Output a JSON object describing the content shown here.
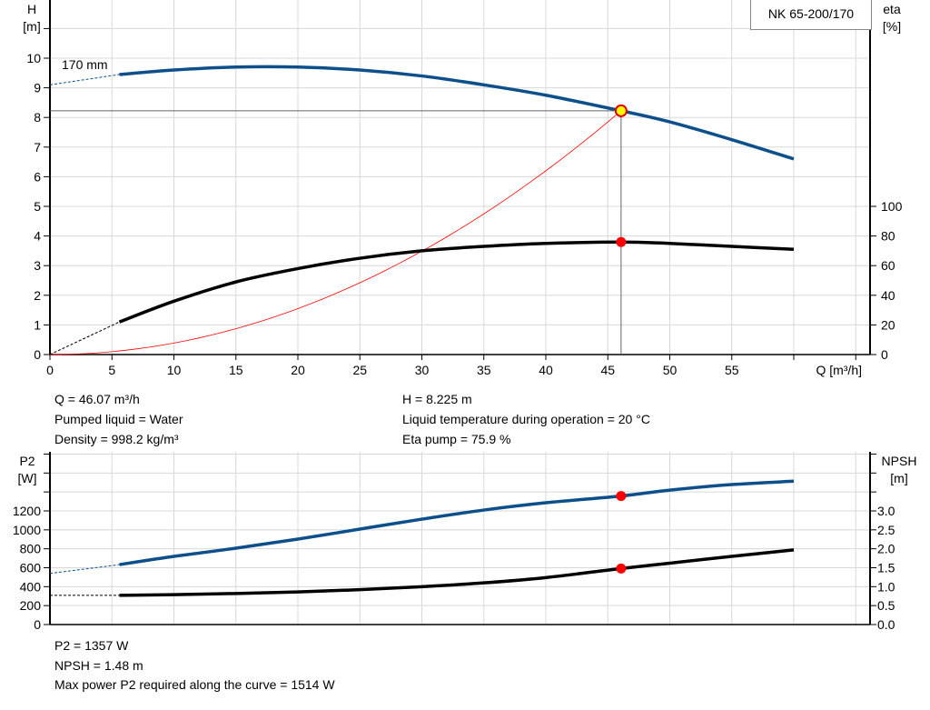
{
  "title": "NK 65-200/170",
  "chart_data": [
    {
      "type": "line",
      "title": "NK 65-200/170",
      "xlabel": "Q [m³/h]",
      "ylabel_left": "H\n[m]",
      "ylabel_right": "eta\n[%]",
      "xlim": [
        0,
        65
      ],
      "ylim_left": [
        0,
        12
      ],
      "ylim_right": [
        0,
        100
      ],
      "x_ticks": [
        0,
        5,
        10,
        15,
        20,
        25,
        30,
        35,
        40,
        45,
        50,
        55
      ],
      "y_ticks_left": [
        0,
        1,
        2,
        3,
        4,
        5,
        6,
        7,
        8,
        9,
        10
      ],
      "y_ticks_right": [
        0,
        20,
        40,
        60,
        80,
        100
      ],
      "grid": true,
      "curve_label": "170 mm",
      "series": [
        {
          "axis": "left",
          "color": "#0d4f8b",
          "x": [
            5.6,
            10,
            15,
            20,
            25,
            30,
            35,
            40,
            46.07,
            50,
            55,
            60
          ],
          "y": [
            9.45,
            9.6,
            9.7,
            9.7,
            9.6,
            9.4,
            9.1,
            8.75,
            8.225,
            7.85,
            7.25,
            6.6
          ],
          "extrapolated_from": [
            0,
            9.1
          ]
        },
        {
          "axis": "right",
          "color": "#000000",
          "x": [
            5.6,
            10,
            15,
            20,
            25,
            30,
            35,
            40,
            46.07,
            50,
            55,
            60
          ],
          "y": [
            22,
            36,
            49,
            58,
            65,
            70,
            73,
            75,
            75.9,
            75,
            73,
            71
          ],
          "extrapolated_from": [
            0,
            0
          ]
        },
        {
          "axis": "left",
          "color": "#ff0000",
          "type": "system-curve",
          "x": [
            0,
            46.07
          ],
          "y": [
            0,
            8.225
          ]
        }
      ],
      "operating_point": {
        "Q": 46.07,
        "H": 8.225,
        "eta": 75.9
      }
    },
    {
      "type": "line",
      "ylabel_left": "P2\n[W]",
      "ylabel_right": "NPSH\n[m]",
      "xlim": [
        0,
        65
      ],
      "ylim_left": [
        0,
        1800
      ],
      "ylim_right": [
        0,
        4.5
      ],
      "y_ticks_left": [
        0,
        200,
        400,
        600,
        800,
        1000,
        1200
      ],
      "y_ticks_right": [
        "0.0",
        "0.5",
        "1.0",
        "1.5",
        "2.0",
        "2.5",
        "3.0"
      ],
      "grid": true,
      "series": [
        {
          "axis": "left",
          "color": "#0d4f8b",
          "x": [
            5.6,
            10,
            15,
            20,
            25,
            30,
            35,
            40,
            46.07,
            50,
            55,
            60
          ],
          "y": [
            633,
            720,
            806,
            902,
            1008,
            1113,
            1209,
            1286,
            1357,
            1420,
            1478,
            1514
          ],
          "extrapolated_from": [
            0,
            540
          ]
        },
        {
          "axis": "right",
          "color": "#000000",
          "x": [
            5.6,
            10,
            15,
            20,
            25,
            30,
            35,
            40,
            46.07,
            50,
            55,
            60
          ],
          "y": [
            0.77,
            0.79,
            0.82,
            0.86,
            0.92,
            1.0,
            1.1,
            1.24,
            1.48,
            1.62,
            1.8,
            1.97
          ],
          "extrapolated_from": [
            0,
            0.77
          ]
        }
      ],
      "operating_point": {
        "Q": 46.07,
        "P2": 1357,
        "NPSH": 1.48
      }
    }
  ],
  "info_top": {
    "q": "Q = 46.07 m³/h",
    "h": "H = 8.225 m",
    "liquid": "Pumped liquid = Water",
    "temp": "Liquid temperature during operation = 20 °C",
    "density": "Density = 998.2 kg/m³",
    "eta": "Eta pump = 75.9 %"
  },
  "info_bottom": {
    "p2": "P2 = 1357 W",
    "npsh": "NPSH = 1.48 m",
    "max": "Max power P2 required along the curve = 1514 W"
  }
}
